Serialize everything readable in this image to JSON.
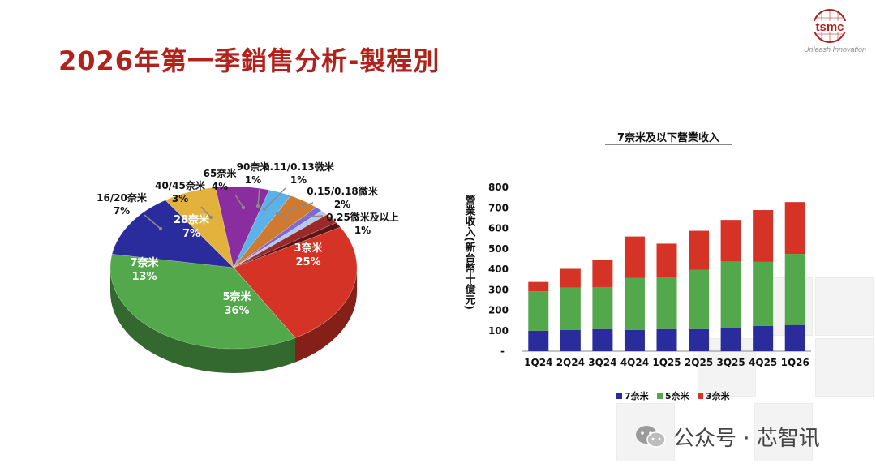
{
  "header": {
    "title": "2026年第一季銷售分析-製程別",
    "logo_text": "tsmc",
    "logo_tagline": "Unleash Innovation"
  },
  "watermark": {
    "text": "公众号 · 芯智讯",
    "icon": "wechat-icon"
  },
  "chart_data": [
    {
      "type": "pie",
      "title": "",
      "slices": [
        {
          "label": "3奈米",
          "value": 25,
          "pct": "25%",
          "color": "#d63327"
        },
        {
          "label": "5奈米",
          "value": 36,
          "pct": "36%",
          "color": "#52a84a"
        },
        {
          "label": "7奈米",
          "value": 13,
          "pct": "13%",
          "color": "#2a2b9c"
        },
        {
          "label": "16/20奈米",
          "value": 7,
          "pct": "7%",
          "color": "#e3b23c"
        },
        {
          "label": "28奈米",
          "value": 7,
          "pct": "7%",
          "color": "#8a2d9e"
        },
        {
          "label": "40/45奈米",
          "value": 3,
          "pct": "3%",
          "color": "#5ab2e8"
        },
        {
          "label": "65奈米",
          "value": 4,
          "pct": "4%",
          "color": "#cf7a2e"
        },
        {
          "label": "90奈米",
          "value": 1,
          "pct": "1%",
          "color": "#7a6ad8"
        },
        {
          "label": "0.11/0.13微米",
          "value": 1,
          "pct": "1%",
          "color": "#b7c9ea"
        },
        {
          "label": "0.15/0.18微米",
          "value": 2,
          "pct": "2%",
          "color": "#9a2a2a"
        },
        {
          "label": "0.25微米及以上",
          "value": 1,
          "pct": "1%",
          "color": "#5a1414"
        }
      ]
    },
    {
      "type": "bar",
      "stacked": true,
      "title": "7奈米及以下營業收入",
      "ylabel": "營業收入(新台幣十億元)",
      "xlabel": "",
      "ylim": [
        0,
        800
      ],
      "yticks": [
        100,
        200,
        300,
        400,
        500,
        600,
        700,
        800
      ],
      "zero_tick_label": "-",
      "categories": [
        "1Q24",
        "2Q24",
        "3Q24",
        "4Q24",
        "1Q25",
        "2Q25",
        "3Q25",
        "4Q25",
        "1Q26"
      ],
      "series": [
        {
          "name": "7奈米",
          "color": "#2a2b9c",
          "values": [
            100,
            103,
            108,
            104,
            108,
            108,
            113,
            123,
            128
          ]
        },
        {
          "name": "5奈米",
          "color": "#52a84a",
          "values": [
            192,
            207,
            205,
            253,
            254,
            290,
            325,
            313,
            347
          ]
        },
        {
          "name": "3奈米",
          "color": "#d63327",
          "values": [
            46,
            92,
            134,
            203,
            163,
            190,
            203,
            253,
            253
          ]
        }
      ],
      "legend_position": "bottom"
    }
  ]
}
